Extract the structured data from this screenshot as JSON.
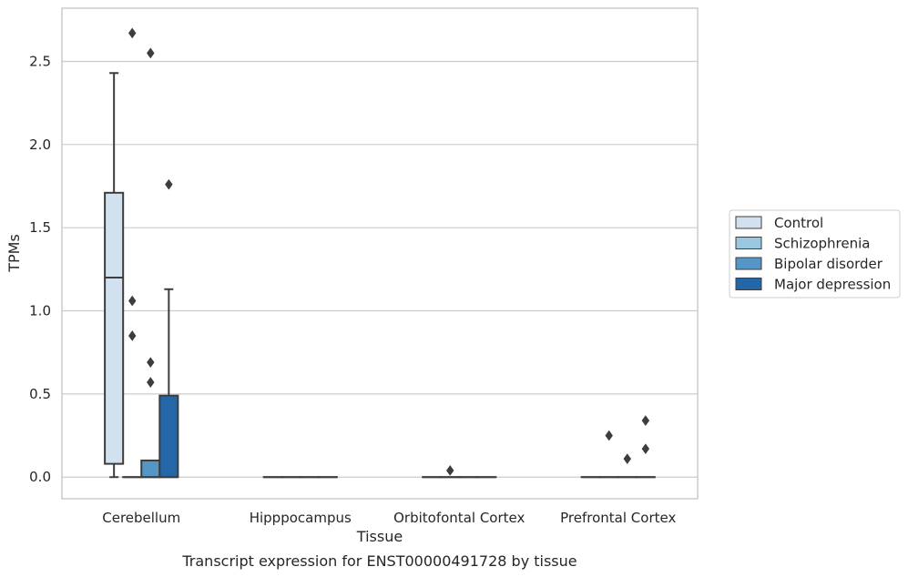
{
  "chart_data": {
    "type": "box",
    "title": "",
    "caption": "Transcript expression for ENST00000491728 by tissue",
    "xlabel": "Tissue",
    "ylabel": "TPMs",
    "ylim": [
      -0.13,
      2.82
    ],
    "yticks": [
      "0.0",
      "0.5",
      "1.0",
      "1.5",
      "2.0",
      "2.5"
    ],
    "ytick_values": [
      0,
      0.5,
      1.0,
      1.5,
      2.0,
      2.5
    ],
    "grid": "horizontal",
    "legend_position": "right",
    "categories": [
      "Cerebellum",
      "Hipppocampus",
      "Orbitofontal Cortex",
      "Prefrontal Cortex"
    ],
    "series": [
      {
        "name": "Control",
        "color": "#d2e1f0",
        "boxes": [
          {
            "q1": 0.08,
            "median": 1.2,
            "q3": 1.71,
            "whisker_low": 0.0,
            "whisker_high": 2.43,
            "outliers": []
          },
          {
            "q1": 0,
            "median": 0,
            "q3": 0,
            "whisker_low": 0,
            "whisker_high": 0,
            "outliers": []
          },
          {
            "q1": 0,
            "median": 0,
            "q3": 0,
            "whisker_low": 0,
            "whisker_high": 0,
            "outliers": []
          },
          {
            "q1": 0,
            "median": 0,
            "q3": 0,
            "whisker_low": 0,
            "whisker_high": 0,
            "outliers": []
          }
        ]
      },
      {
        "name": "Schizophrenia",
        "color": "#9ac8e0",
        "boxes": [
          {
            "q1": 0,
            "median": 0,
            "q3": 0,
            "whisker_low": 0,
            "whisker_high": 0,
            "outliers": [
              2.67,
              1.06,
              0.85
            ]
          },
          {
            "q1": 0,
            "median": 0,
            "q3": 0,
            "whisker_low": 0,
            "whisker_high": 0,
            "outliers": []
          },
          {
            "q1": 0,
            "median": 0,
            "q3": 0,
            "whisker_low": 0,
            "whisker_high": 0,
            "outliers": [
              0.04
            ]
          },
          {
            "q1": 0,
            "median": 0,
            "q3": 0,
            "whisker_low": 0,
            "whisker_high": 0,
            "outliers": [
              0.25
            ]
          }
        ]
      },
      {
        "name": "Bipolar disorder",
        "color": "#5496c6",
        "boxes": [
          {
            "q1": 0,
            "median": 0,
            "q3": 0.1,
            "whisker_low": 0,
            "whisker_high": 0.1,
            "outliers": [
              2.55,
              0.69,
              0.57
            ]
          },
          {
            "q1": 0,
            "median": 0,
            "q3": 0,
            "whisker_low": 0,
            "whisker_high": 0,
            "outliers": []
          },
          {
            "q1": 0,
            "median": 0,
            "q3": 0,
            "whisker_low": 0,
            "whisker_high": 0,
            "outliers": []
          },
          {
            "q1": 0,
            "median": 0,
            "q3": 0,
            "whisker_low": 0,
            "whisker_high": 0,
            "outliers": [
              0.11
            ]
          }
        ]
      },
      {
        "name": "Major depression",
        "color": "#2467a8",
        "boxes": [
          {
            "q1": 0,
            "median": 0,
            "q3": 0.49,
            "whisker_low": 0,
            "whisker_high": 1.13,
            "outliers": [
              1.76
            ]
          },
          {
            "q1": 0,
            "median": 0,
            "q3": 0,
            "whisker_low": 0,
            "whisker_high": 0,
            "outliers": []
          },
          {
            "q1": 0,
            "median": 0,
            "q3": 0,
            "whisker_low": 0,
            "whisker_high": 0,
            "outliers": []
          },
          {
            "q1": 0,
            "median": 0,
            "q3": 0,
            "whisker_low": 0,
            "whisker_high": 0,
            "outliers": [
              0.34,
              0.17
            ]
          }
        ]
      }
    ]
  }
}
